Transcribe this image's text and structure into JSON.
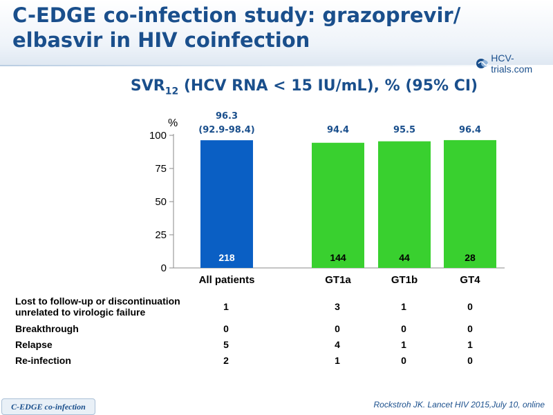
{
  "slide": {
    "title_line1": "C-EDGE co-infection study: grazoprevir/",
    "title_line2": "elbasvir in HIV coinfection",
    "logo_text": "HCV-trials.com",
    "logo_icon": "hcv-trials-logo-icon",
    "subtitle_main": "SVR",
    "subtitle_sub": "12",
    "subtitle_rest": " (HCV RNA < 15 IU/mL), % (95% CI)",
    "footer_tab": "C-EDGE co-infection",
    "citation": "Rockstroh JK. Lancet HIV 2015,July 10, online"
  },
  "chart_data": {
    "type": "bar",
    "y_unit": "%",
    "ylim": [
      0,
      100
    ],
    "yticks": [
      "0",
      "25",
      "50",
      "75",
      "100"
    ],
    "categories": [
      "All patients",
      "GT1a",
      "GT1b",
      "GT4"
    ],
    "values": [
      96.3,
      94.4,
      95.5,
      96.4
    ],
    "value_labels": [
      "96.3",
      "94.4",
      "95.5",
      "96.4"
    ],
    "ci_labels": [
      "(92.9-98.4)",
      "",
      "",
      ""
    ],
    "n_labels": [
      "218",
      "144",
      "44",
      "28"
    ],
    "bar_colors": [
      "#0a5fc4",
      "#39d02f",
      "#39d02f",
      "#39d02f"
    ],
    "n_label_colors": [
      "#ffffff",
      "#000000",
      "#000000",
      "#000000"
    ],
    "value_label_color": "#1a4f8c"
  },
  "table": {
    "rows": [
      {
        "label": "Lost to follow-up or discontinuation unrelated to virologic failure",
        "label_line1": "Lost to follow-up or discontinuation",
        "label_line2": "unrelated to virologic failure",
        "values": [
          "1",
          "3",
          "1",
          "0"
        ]
      },
      {
        "label": "Breakthrough",
        "label_line1": "Breakthrough",
        "label_line2": "",
        "values": [
          "0",
          "0",
          "0",
          "0"
        ]
      },
      {
        "label": "Relapse",
        "label_line1": "Relapse",
        "label_line2": "",
        "values": [
          "5",
          "4",
          "1",
          "1"
        ]
      },
      {
        "label": "Re-infection",
        "label_line1": "Re-infection",
        "label_line2": "",
        "values": [
          "2",
          "1",
          "0",
          "0"
        ]
      }
    ]
  }
}
